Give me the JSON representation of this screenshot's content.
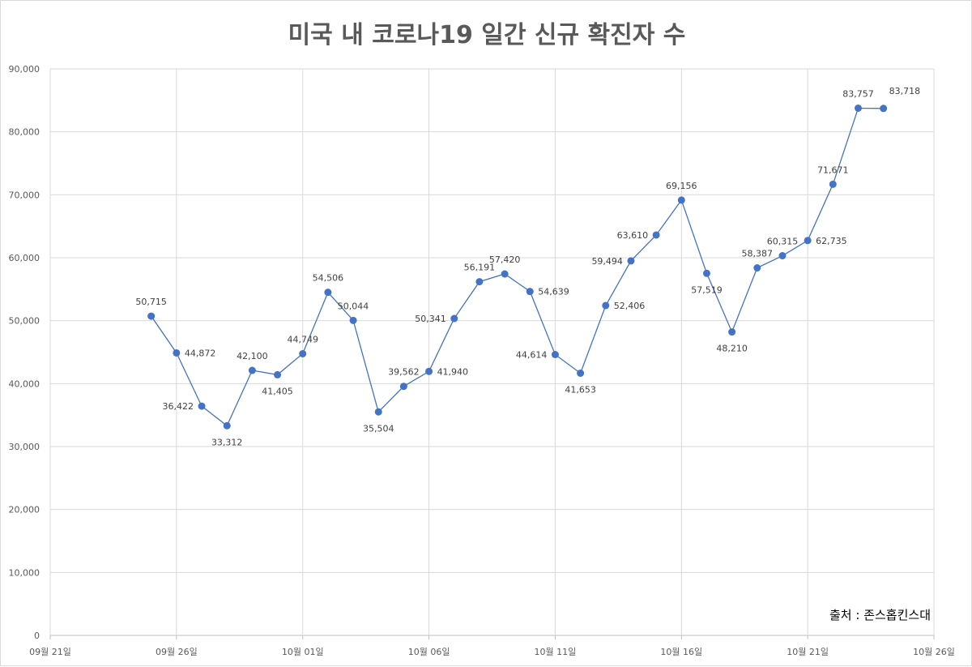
{
  "chart_data": {
    "type": "line",
    "title": "미국 내 코로나19 일간 신규 확진자 수",
    "source": "출처 : 존스홉킨스대",
    "ylim": [
      0,
      90000
    ],
    "y_ticks": [
      "0",
      "10,000",
      "20,000",
      "30,000",
      "40,000",
      "50,000",
      "60,000",
      "70,000",
      "80,000",
      "90,000"
    ],
    "y_tick_values": [
      0,
      10000,
      20000,
      30000,
      40000,
      50000,
      60000,
      70000,
      80000,
      90000
    ],
    "x_ticks": [
      "09월 21일",
      "09월 26일",
      "10월 01일",
      "10월 06일",
      "10월 11일",
      "10월 16일",
      "10월 21일",
      "10월 26일"
    ],
    "x_tick_days": [
      0,
      5,
      10,
      15,
      20,
      25,
      30,
      35
    ],
    "grid": true,
    "legend": "none",
    "line_color": "#4472c4",
    "series": [
      {
        "x": [
          4,
          5,
          6,
          7,
          8,
          9,
          10,
          11,
          12,
          13,
          14,
          15,
          16,
          17,
          18,
          19,
          20,
          21,
          22,
          23,
          24,
          25,
          26,
          27,
          28,
          29,
          30,
          31,
          32,
          33
        ],
        "values": [
          50715,
          44872,
          36422,
          33312,
          42100,
          41405,
          44749,
          54506,
          50044,
          35504,
          39562,
          41940,
          50341,
          56191,
          57420,
          54639,
          44614,
          41653,
          52406,
          59494,
          63610,
          69156,
          57519,
          48210,
          58387,
          60315,
          62735,
          71671,
          83757,
          83718
        ],
        "labels": [
          "50,715",
          "44,872",
          "36,422",
          "33,312",
          "42,100",
          "41,405",
          "44,749",
          "54,506",
          "50,044",
          "35,504",
          "39,562",
          "41,940",
          "50,341",
          "56,191",
          "57,420",
          "54,639",
          "44,614",
          "41,653",
          "52,406",
          "59,494",
          "63,610",
          "69,156",
          "57,519",
          "48,210",
          "58,387",
          "60,315",
          "62,735",
          "71,671",
          "83,757",
          "83,718"
        ],
        "label_pos": [
          "above",
          "right",
          "left",
          "below",
          "above",
          "below",
          "above",
          "above",
          "above",
          "below",
          "above",
          "right",
          "left",
          "above",
          "above",
          "right",
          "left",
          "below",
          "right",
          "left",
          "left",
          "above",
          "below",
          "below",
          "above",
          "above",
          "right",
          "above",
          "above",
          "right"
        ]
      }
    ]
  }
}
